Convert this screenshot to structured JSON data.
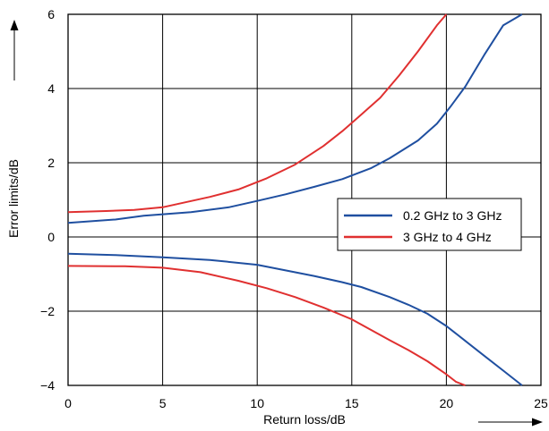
{
  "chart_data": {
    "type": "line",
    "title": "",
    "xlabel": "Return loss/dB",
    "ylabel": "Error limits/dB",
    "xlim": [
      0,
      25
    ],
    "ylim": [
      -4,
      6
    ],
    "x_ticks": [
      "0",
      "5",
      "10",
      "15",
      "20",
      "25"
    ],
    "y_ticks": [
      "6",
      "4",
      "2",
      "0",
      "−2",
      "−4"
    ],
    "grid": true,
    "legend_position": "right",
    "series": [
      {
        "name": "0.2 GHz to 3 GHz",
        "color": "#1f4fa0",
        "upper": {
          "x": [
            0,
            2.5,
            4,
            6.5,
            8.5,
            10,
            11.5,
            13,
            14.5,
            16,
            17,
            18.5,
            19.5,
            20.2,
            21,
            22,
            23,
            24
          ],
          "y": [
            0.38,
            0.47,
            0.57,
            0.67,
            0.8,
            0.97,
            1.15,
            1.35,
            1.56,
            1.85,
            2.12,
            2.6,
            3.05,
            3.5,
            4.05,
            4.9,
            5.7,
            6.0
          ]
        },
        "lower": {
          "x": [
            0,
            2.5,
            5,
            7.5,
            10,
            11.5,
            13,
            14.5,
            15.5,
            17,
            18,
            19,
            20,
            21,
            22,
            23,
            24
          ],
          "y": [
            -0.45,
            -0.49,
            -0.55,
            -0.62,
            -0.75,
            -0.9,
            -1.05,
            -1.22,
            -1.35,
            -1.62,
            -1.83,
            -2.07,
            -2.4,
            -2.8,
            -3.2,
            -3.6,
            -4.0
          ]
        }
      },
      {
        "name": "3 GHz to 4 GHz",
        "color": "#e03030",
        "upper": {
          "x": [
            0,
            2,
            3.5,
            5,
            7.5,
            9,
            10.5,
            12,
            13.5,
            14.5,
            15.5,
            16.5,
            17.5,
            18.5,
            19.5,
            20
          ],
          "y": [
            0.67,
            0.7,
            0.73,
            0.8,
            1.08,
            1.28,
            1.58,
            1.95,
            2.45,
            2.85,
            3.3,
            3.75,
            4.35,
            5.0,
            5.7,
            6.0
          ]
        },
        "lower": {
          "x": [
            0,
            3,
            5,
            7,
            9,
            10.5,
            12,
            13.5,
            15,
            16,
            17,
            18,
            19,
            20,
            20.5,
            21
          ],
          "y": [
            -0.78,
            -0.79,
            -0.83,
            -0.95,
            -1.18,
            -1.38,
            -1.62,
            -1.9,
            -2.22,
            -2.5,
            -2.78,
            -3.05,
            -3.35,
            -3.7,
            -3.9,
            -4.0
          ]
        }
      }
    ]
  }
}
